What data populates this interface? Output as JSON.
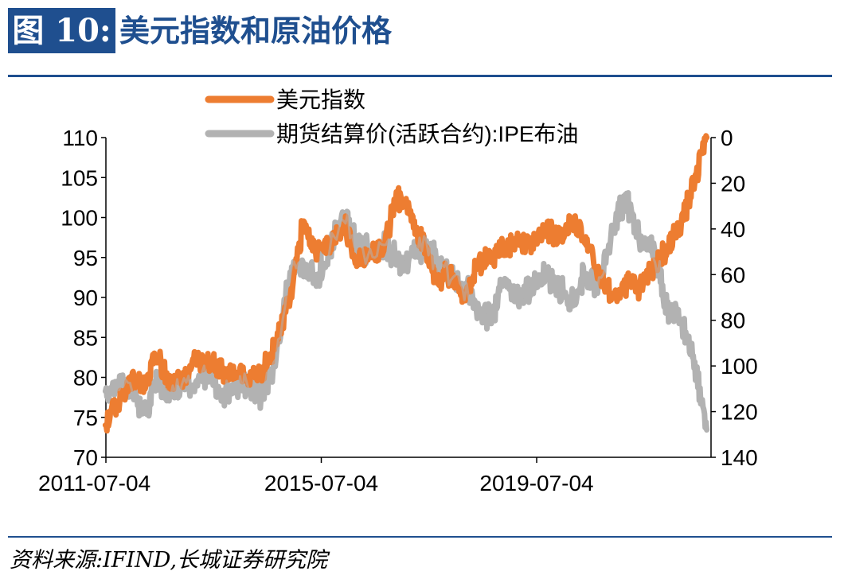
{
  "figure": {
    "tag": "图 10:",
    "title": "美元指数和原油价格",
    "source": "资料来源:IFIND,长城证券研究院"
  },
  "colors": {
    "usd": "#ed7d31",
    "brent": "#b2b2b2",
    "accent": "#1f4f8f"
  },
  "chart_data": {
    "type": "line",
    "legend_position": "top",
    "grid": false,
    "y_left": {
      "range": [
        70,
        110
      ],
      "ticks": [
        110,
        105,
        100,
        95,
        90,
        85,
        80,
        75,
        70
      ]
    },
    "y_right": {
      "range": [
        0,
        140
      ],
      "inverted": true,
      "ticks": [
        0,
        20,
        40,
        60,
        80,
        100,
        120,
        140
      ]
    },
    "x_ticks": [
      "2011-07-04",
      "2015-07-04",
      "2019-07-04"
    ],
    "x_range": [
      "2011-07-04",
      "2022-09-30"
    ],
    "series": [
      {
        "name": "美元指数",
        "axis": "left",
        "x": [
          "2011-07",
          "2011-10",
          "2012-01",
          "2012-04",
          "2012-06",
          "2012-09",
          "2012-12",
          "2013-03",
          "2013-06",
          "2013-09",
          "2013-12",
          "2014-03",
          "2014-06",
          "2014-09",
          "2014-12",
          "2015-03",
          "2015-06",
          "2015-09",
          "2015-12",
          "2016-03",
          "2016-06",
          "2016-09",
          "2016-12",
          "2017-03",
          "2017-06",
          "2017-09",
          "2017-12",
          "2018-03",
          "2018-06",
          "2018-09",
          "2018-12",
          "2019-03",
          "2019-06",
          "2019-09",
          "2019-12",
          "2020-03",
          "2020-06",
          "2020-09",
          "2020-12",
          "2021-03",
          "2021-06",
          "2021-09",
          "2021-12",
          "2022-03",
          "2022-06",
          "2022-09"
        ],
        "values": [
          74.5,
          76.5,
          79.5,
          79.0,
          83.0,
          79.5,
          79.5,
          82.5,
          82.0,
          80.5,
          80.5,
          80.0,
          80.5,
          84.5,
          89.5,
          99.0,
          96.0,
          96.0,
          99.5,
          94.5,
          95.5,
          96.0,
          103.0,
          100.0,
          96.5,
          92.0,
          93.0,
          90.0,
          94.5,
          95.0,
          96.5,
          96.5,
          97.0,
          98.5,
          97.5,
          99.5,
          97.0,
          93.0,
          90.0,
          91.5,
          91.5,
          93.5,
          96.0,
          98.5,
          104.0,
          110.0
        ]
      },
      {
        "name": "期货结算价(活跃合约):IPE布油",
        "axis": "right",
        "x": [
          "2011-07",
          "2011-10",
          "2012-01",
          "2012-04",
          "2012-06",
          "2012-09",
          "2012-12",
          "2013-03",
          "2013-06",
          "2013-09",
          "2013-12",
          "2014-03",
          "2014-06",
          "2014-09",
          "2014-12",
          "2015-03",
          "2015-06",
          "2015-09",
          "2015-12",
          "2016-03",
          "2016-06",
          "2016-09",
          "2016-12",
          "2017-03",
          "2017-06",
          "2017-09",
          "2017-12",
          "2018-03",
          "2018-06",
          "2018-09",
          "2018-12",
          "2019-03",
          "2019-06",
          "2019-09",
          "2019-12",
          "2020-03",
          "2020-06",
          "2020-09",
          "2020-12",
          "2021-03",
          "2021-06",
          "2021-09",
          "2021-12",
          "2022-03",
          "2022-06",
          "2022-09"
        ],
        "values": [
          113,
          105,
          112,
          121,
          105,
          112,
          108,
          110,
          103,
          113,
          108,
          109,
          112,
          96,
          60,
          55,
          62,
          48,
          35,
          48,
          50,
          48,
          54,
          52,
          48,
          54,
          62,
          65,
          75,
          79,
          62,
          70,
          66,
          59,
          66,
          72,
          60,
          65,
          42,
          25,
          45,
          47,
          73,
          80,
          95,
          128
        ]
      }
    ]
  }
}
